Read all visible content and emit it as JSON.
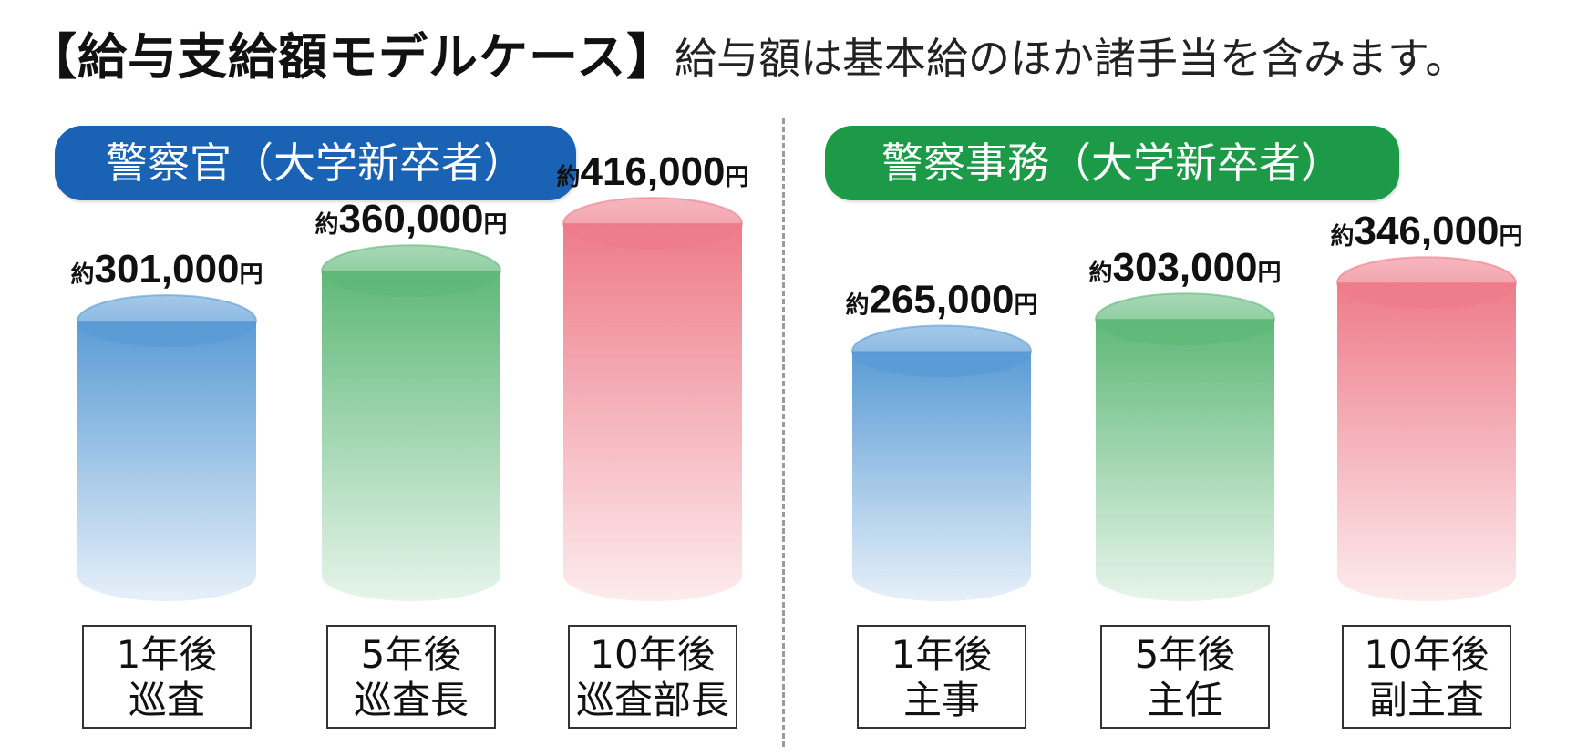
{
  "header": {
    "title": "【給与支給額モデルケース】",
    "note": "給与額は基本給のほか諸手当を含みます。"
  },
  "chart_data": [
    {
      "type": "bar",
      "title": "警察官（大学新卒者）",
      "title_color": "#1a62b4",
      "value_prefix": "約",
      "value_unit": "円",
      "categories": [
        {
          "line1": "1年後",
          "line2": "巡査"
        },
        {
          "line1": "5年後",
          "line2": "巡査長"
        },
        {
          "line1": "10年後",
          "line2": "巡査部長"
        }
      ],
      "values": [
        301000,
        360000,
        416000
      ],
      "value_labels": [
        "301,000",
        "360,000",
        "416,000"
      ],
      "bar_colors": [
        "blue",
        "green",
        "red"
      ]
    },
    {
      "type": "bar",
      "title": "警察事務（大学新卒者）",
      "title_color": "#1c9a47",
      "value_prefix": "約",
      "value_unit": "円",
      "categories": [
        {
          "line1": "1年後",
          "line2": "主事"
        },
        {
          "line1": "5年後",
          "line2": "主任"
        },
        {
          "line1": "10年後",
          "line2": "副主査"
        }
      ],
      "values": [
        265000,
        303000,
        346000
      ],
      "value_labels": [
        "265,000",
        "303,000",
        "346,000"
      ],
      "bar_colors": [
        "blue",
        "green",
        "red"
      ]
    }
  ],
  "colors": {
    "blue": "#5a9bd5",
    "green": "#5fb878",
    "red": "#ee7b89"
  }
}
